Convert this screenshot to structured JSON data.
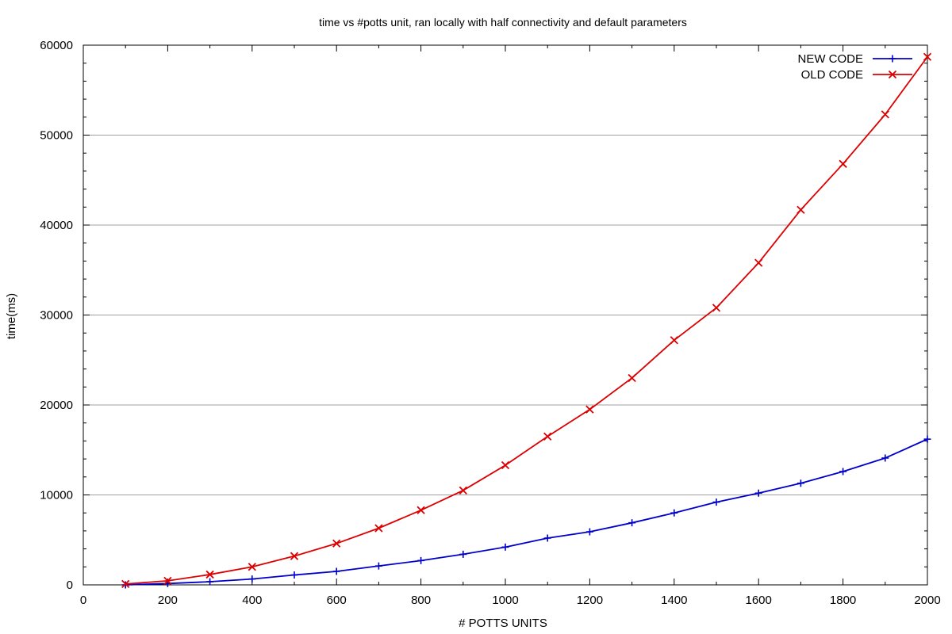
{
  "chart_data": {
    "type": "line",
    "title": "time vs #potts unit, ran locally with half connectivity and default parameters",
    "xlabel": "# POTTS UNITS",
    "ylabel": "time(ms)",
    "xlim": [
      0,
      2000
    ],
    "ylim": [
      0,
      60000
    ],
    "xticks": [
      0,
      200,
      400,
      600,
      800,
      1000,
      1200,
      1400,
      1600,
      1800,
      2000
    ],
    "yticks": [
      0,
      10000,
      20000,
      30000,
      40000,
      50000,
      60000
    ],
    "grid": "horizontal",
    "legend_position": "top-right",
    "x": [
      100,
      200,
      300,
      400,
      500,
      600,
      700,
      800,
      900,
      1000,
      1100,
      1200,
      1300,
      1400,
      1500,
      1600,
      1700,
      1800,
      1900,
      2000
    ],
    "series": [
      {
        "name": "NEW CODE",
        "color": "#0000cc",
        "marker": "plus",
        "values": [
          0,
          150,
          350,
          650,
          1100,
          1500,
          2100,
          2700,
          3400,
          4200,
          5200,
          5900,
          6900,
          8000,
          9200,
          10200,
          11300,
          12600,
          14100,
          16200
        ]
      },
      {
        "name": "OLD CODE",
        "color": "#dd0000",
        "marker": "cross",
        "values": [
          100,
          450,
          1150,
          2000,
          3200,
          4600,
          6300,
          8300,
          10500,
          13300,
          16500,
          19500,
          23000,
          27200,
          30800,
          35800,
          41700,
          46800,
          52300,
          58700
        ]
      }
    ]
  }
}
